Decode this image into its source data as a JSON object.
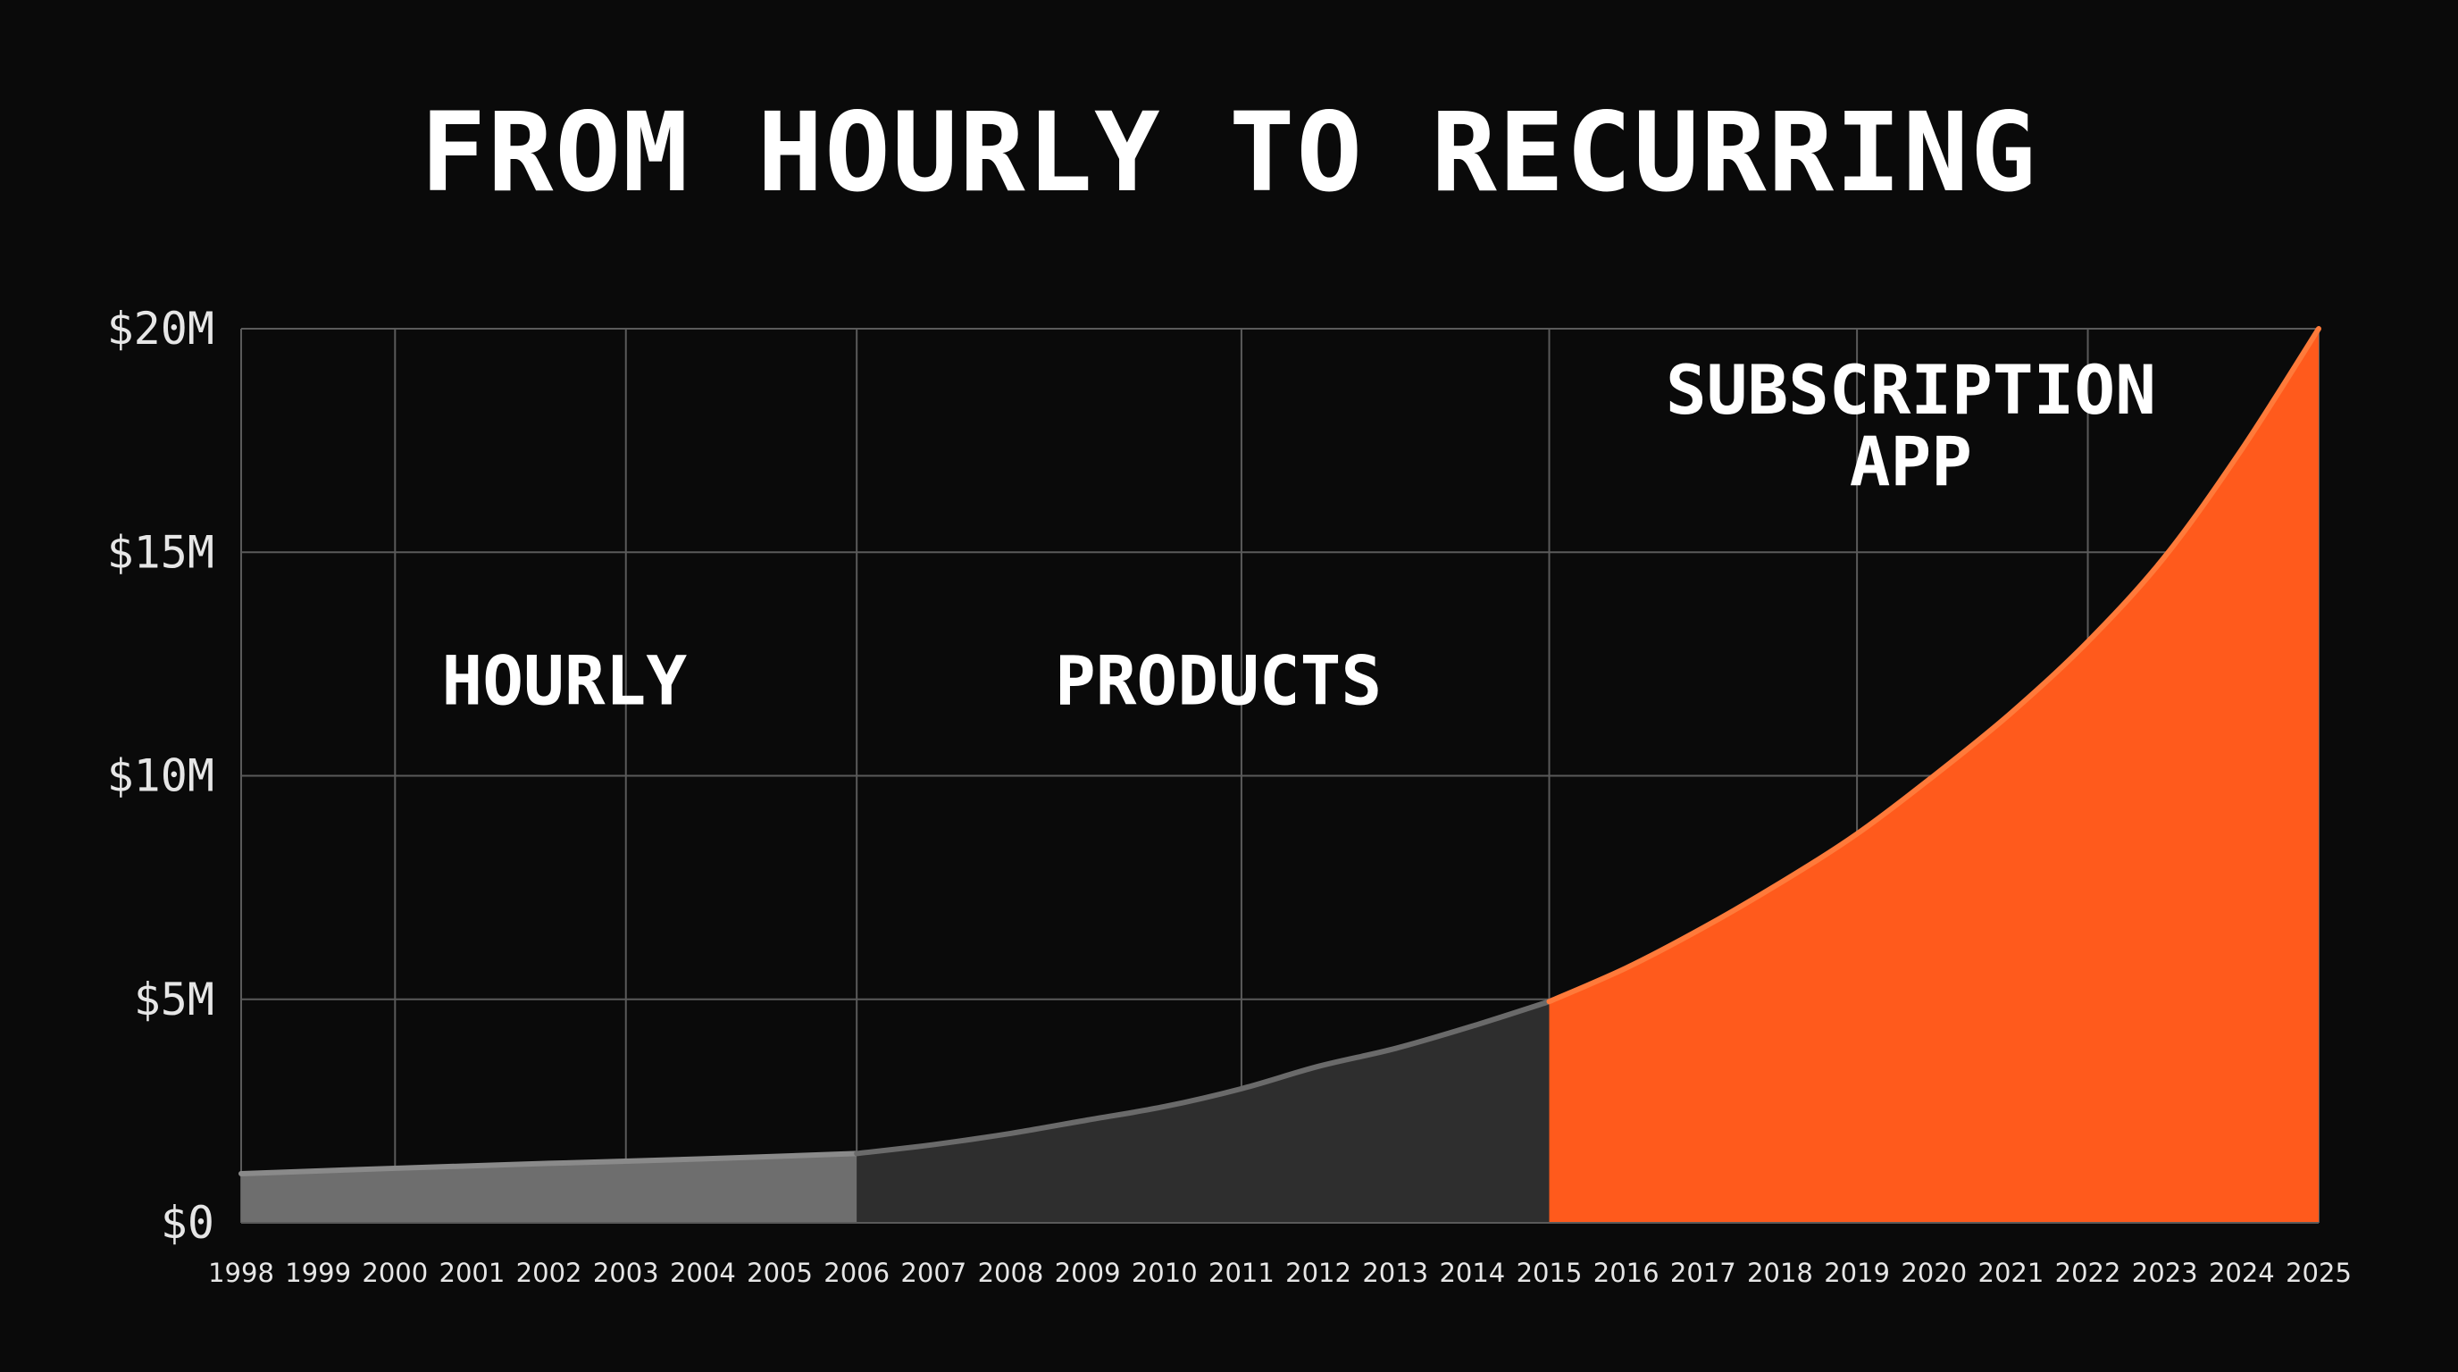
{
  "chart_data": {
    "type": "area",
    "title": "FROM HOURLY TO RECURRING",
    "xlabel": "",
    "ylabel": "",
    "x": [
      1998,
      1999,
      2000,
      2001,
      2002,
      2003,
      2004,
      2005,
      2006,
      2007,
      2008,
      2009,
      2010,
      2011,
      2012,
      2013,
      2014,
      2015,
      2016,
      2017,
      2018,
      2019,
      2020,
      2021,
      2022,
      2023,
      2024,
      2025
    ],
    "x_tick_labels": [
      "1998",
      "1999",
      "2000",
      "2001",
      "2002",
      "2003",
      "2004",
      "2005",
      "2006",
      "2007",
      "2008",
      "2009",
      "2010",
      "2011",
      "2012",
      "2013",
      "2014",
      "2015",
      "2016",
      "2017",
      "2018",
      "2019",
      "2020",
      "2021",
      "2022",
      "2023",
      "2024",
      "2025"
    ],
    "xlim": [
      1998,
      2025
    ],
    "ylim": [
      0,
      20
    ],
    "y_unit": "$M",
    "y_ticks": [
      0,
      5,
      10,
      15,
      20
    ],
    "y_tick_labels": [
      "$0",
      "$5M",
      "$10M",
      "$15M",
      "$20M"
    ],
    "grid": true,
    "series": [
      {
        "segment": "hourly",
        "x": [
          1998,
          2000,
          2002,
          2004,
          2006
        ],
        "values": [
          1.1,
          1.22,
          1.33,
          1.43,
          1.55
        ]
      },
      {
        "segment": "products",
        "x": [
          2006,
          2007,
          2008,
          2009,
          2010,
          2011,
          2012,
          2013,
          2014,
          2015
        ],
        "values": [
          1.55,
          1.75,
          2.0,
          2.3,
          2.6,
          3.0,
          3.5,
          3.9,
          4.4,
          4.95
        ]
      },
      {
        "segment": "subscription",
        "x": [
          2015,
          2016,
          2017,
          2018,
          2019,
          2020,
          2021,
          2022,
          2023,
          2024,
          2025
        ],
        "values": [
          4.95,
          5.7,
          6.6,
          7.6,
          8.7,
          10.0,
          11.4,
          13.0,
          14.9,
          17.3,
          20.0
        ]
      }
    ],
    "annotations": [
      {
        "text": "HOURLY",
        "x": 2002.2,
        "y": 11.6
      },
      {
        "text": "PRODUCTS",
        "x": 2010.7,
        "y": 11.6
      },
      {
        "lines": [
          "SUBSCRIPTION",
          "APP"
        ],
        "x": 2019.7,
        "y": 18.1
      }
    ],
    "colors": {
      "background": "#0a0a0a",
      "grid": "#5a5a5a",
      "hourly_fill": "#6e6e6e",
      "hourly_line": "#8a8a8a",
      "products_fill": "#2e2e2e",
      "products_line": "#6a6a6a",
      "subscription_fill": "#ff5a1c",
      "subscription_line": "#ff7a3a",
      "text": "#ffffff",
      "axis_text": "#e6e6e6"
    }
  }
}
